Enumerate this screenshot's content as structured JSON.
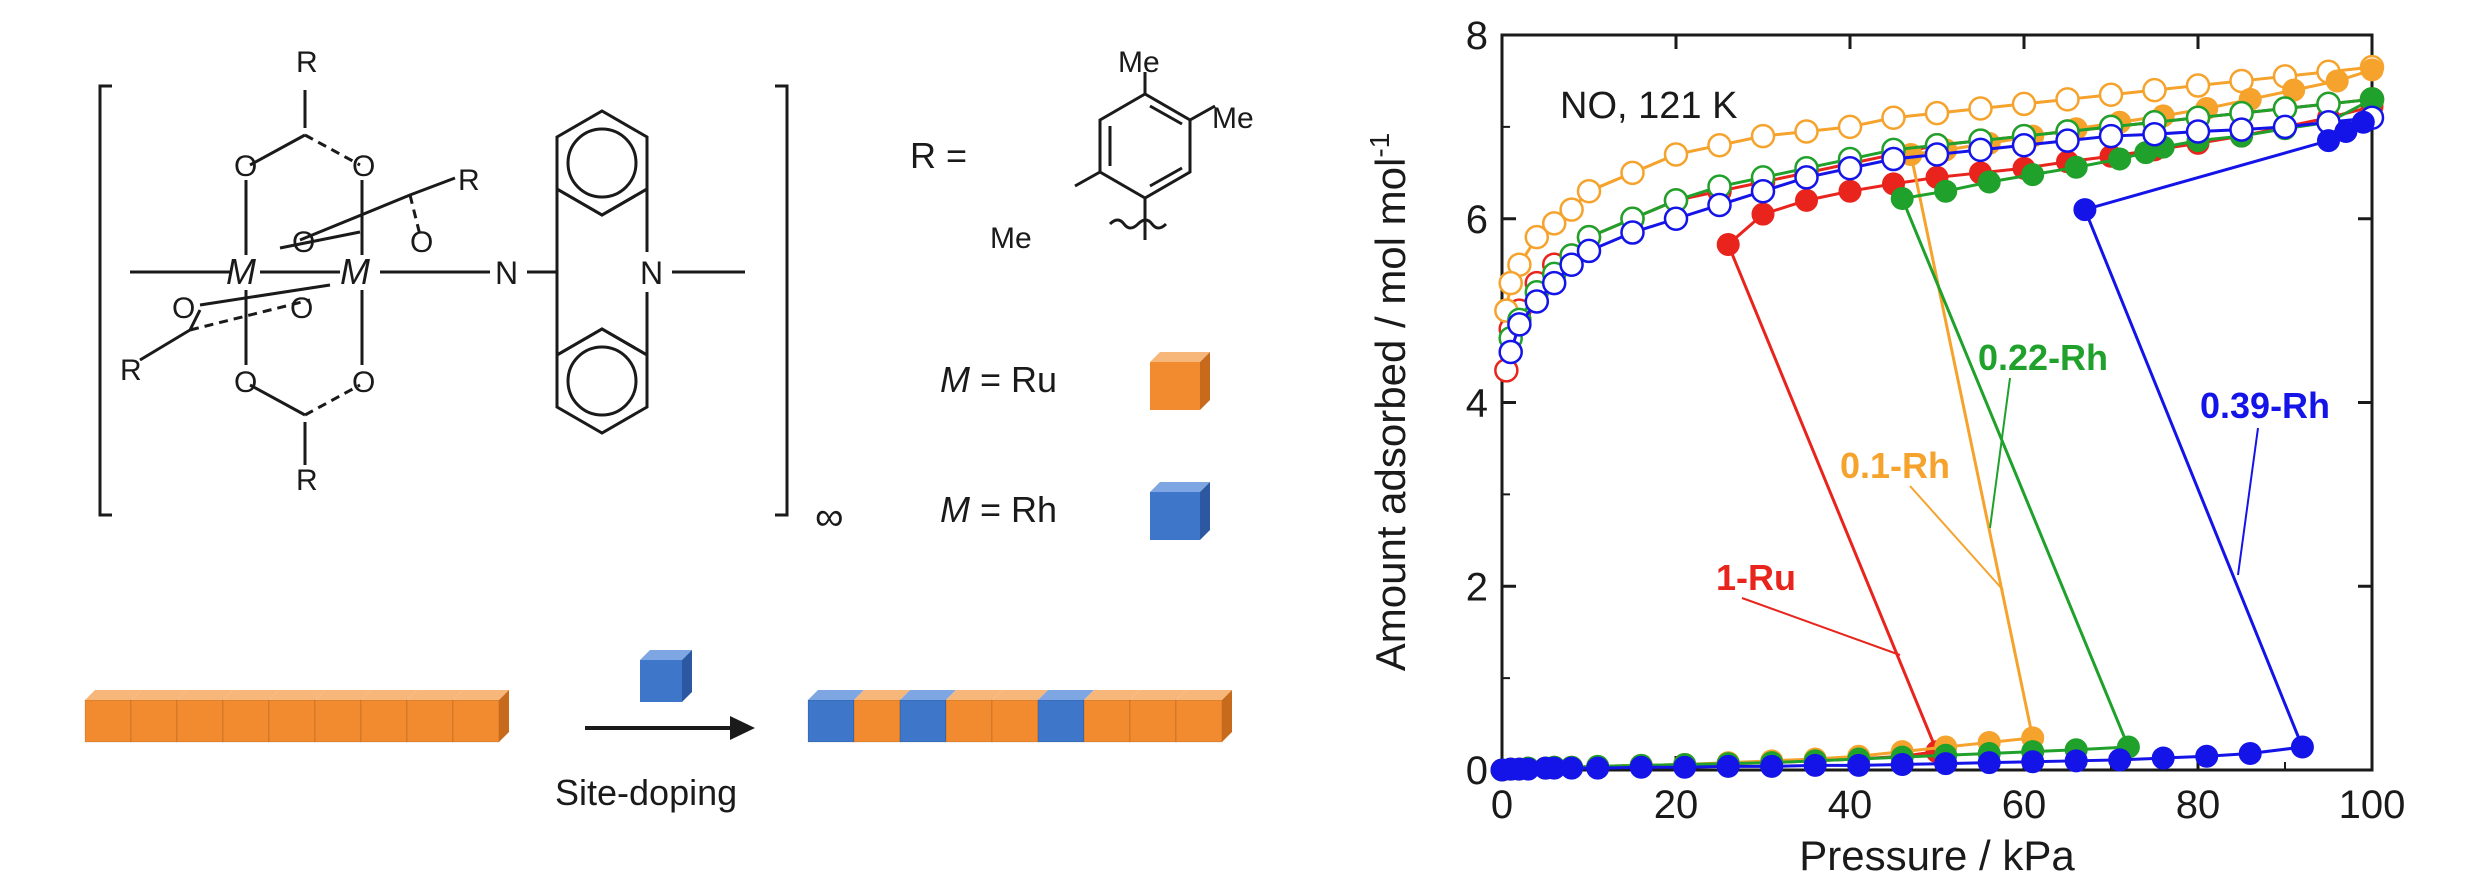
{
  "scheme": {
    "r_definition": "R =",
    "substituent_labels": [
      "Me",
      "Me",
      "Me"
    ],
    "metal_ru": {
      "symbol": "M",
      "rest": "= Ru",
      "color": "#F28A30"
    },
    "metal_rh": {
      "symbol": "M",
      "rest": "= Rh",
      "color": "#3E76C9"
    },
    "infinity": "∞",
    "arrow_label": "Site-doping",
    "chain_before": [
      "Ru",
      "Ru",
      "Ru",
      "Ru",
      "Ru",
      "Ru",
      "Ru",
      "Ru",
      "Ru"
    ],
    "chain_after": [
      "Rh",
      "Ru",
      "Rh",
      "Ru",
      "Ru",
      "Rh",
      "Ru",
      "Ru",
      "Ru"
    ],
    "structure_labels": {
      "R": "R",
      "O": "O",
      "M": "M",
      "N": "N"
    }
  },
  "chart_data": {
    "type": "scatter",
    "annotation": "NO, 121 K",
    "xlabel": "Pressure / kPa",
    "ylabel": "Amount adsorbed / mol mol",
    "ylabel_sup": "-1",
    "xlim": [
      0,
      100
    ],
    "ylim": [
      0,
      8
    ],
    "xticks": [
      0,
      20,
      40,
      60,
      80,
      100
    ],
    "yticks": [
      0,
      2,
      4,
      6,
      8
    ],
    "legend": "direct labels on curves",
    "series": [
      {
        "name": "1-Ru",
        "color": "#E8241C",
        "adsorption_x": [
          0,
          1,
          2,
          3,
          5,
          6,
          8,
          11,
          16,
          21,
          26,
          31,
          36,
          41,
          46,
          50,
          26,
          30,
          35,
          40,
          45,
          50,
          55,
          60,
          65,
          70,
          75,
          80,
          85,
          90,
          95,
          100
        ],
        "adsorption_y": [
          0,
          0.01,
          0.01,
          0.02,
          0.02,
          0.03,
          0.03,
          0.04,
          0.05,
          0.06,
          0.07,
          0.08,
          0.1,
          0.12,
          0.15,
          0.2,
          5.72,
          6.05,
          6.2,
          6.3,
          6.38,
          6.45,
          6.5,
          6.55,
          6.62,
          6.68,
          6.75,
          6.82,
          6.9,
          7.0,
          7.1,
          7.22
        ],
        "desorption_x": [
          100,
          95,
          90,
          85,
          80,
          75,
          70,
          65,
          60,
          55,
          50,
          45,
          40,
          35,
          30,
          25,
          20,
          15,
          10,
          8,
          6,
          4,
          2,
          1,
          0.5
        ],
        "desorption_y": [
          7.3,
          7.25,
          7.2,
          7.15,
          7.1,
          7.05,
          7.0,
          6.95,
          6.9,
          6.85,
          6.8,
          6.7,
          6.6,
          6.5,
          6.4,
          6.3,
          6.2,
          6.0,
          5.8,
          5.6,
          5.5,
          5.3,
          5.0,
          4.8,
          4.35
        ]
      },
      {
        "name": "0.1-Rh",
        "color": "#F5A32C",
        "adsorption_x": [
          0,
          1,
          2,
          3,
          5,
          6,
          8,
          11,
          16,
          21,
          26,
          31,
          36,
          41,
          46,
          51,
          56,
          61,
          47,
          51,
          56,
          61,
          66,
          71,
          76,
          81,
          86,
          91,
          96,
          100
        ],
        "adsorption_y": [
          0,
          0.01,
          0.01,
          0.02,
          0.02,
          0.03,
          0.03,
          0.04,
          0.05,
          0.06,
          0.08,
          0.1,
          0.12,
          0.15,
          0.2,
          0.25,
          0.3,
          0.35,
          6.7,
          6.75,
          6.82,
          6.9,
          6.98,
          7.05,
          7.12,
          7.2,
          7.3,
          7.4,
          7.5,
          7.62
        ],
        "desorption_x": [
          100,
          95,
          90,
          85,
          80,
          75,
          70,
          65,
          60,
          55,
          50,
          45,
          40,
          35,
          30,
          25,
          20,
          15,
          10,
          8,
          6,
          4,
          2,
          1,
          0.5
        ],
        "desorption_y": [
          7.65,
          7.6,
          7.55,
          7.5,
          7.45,
          7.4,
          7.35,
          7.3,
          7.25,
          7.2,
          7.15,
          7.1,
          7.0,
          6.95,
          6.9,
          6.8,
          6.7,
          6.5,
          6.3,
          6.1,
          5.95,
          5.8,
          5.5,
          5.3,
          5.0
        ]
      },
      {
        "name": "0.22-Rh",
        "color": "#1FA12B",
        "adsorption_x": [
          0,
          1,
          2,
          3,
          5,
          6,
          8,
          11,
          16,
          21,
          26,
          31,
          36,
          41,
          46,
          51,
          56,
          61,
          66,
          72,
          46,
          51,
          56,
          61,
          66,
          71,
          74,
          76,
          80,
          85,
          90,
          95,
          100
        ],
        "adsorption_y": [
          0,
          0.01,
          0.01,
          0.02,
          0.02,
          0.03,
          0.03,
          0.04,
          0.05,
          0.06,
          0.07,
          0.08,
          0.1,
          0.12,
          0.14,
          0.16,
          0.18,
          0.2,
          0.22,
          0.25,
          6.22,
          6.3,
          6.4,
          6.48,
          6.56,
          6.65,
          6.72,
          6.78,
          6.85,
          6.9,
          6.98,
          7.05,
          7.3
        ],
        "desorption_x": [
          100,
          95,
          90,
          85,
          80,
          75,
          70,
          65,
          60,
          55,
          50,
          45,
          40,
          35,
          30,
          25,
          20,
          15,
          10,
          8,
          6,
          4,
          2,
          1
        ],
        "desorption_y": [
          7.3,
          7.25,
          7.2,
          7.15,
          7.1,
          7.05,
          7.0,
          6.95,
          6.9,
          6.85,
          6.8,
          6.75,
          6.65,
          6.55,
          6.45,
          6.35,
          6.2,
          6.0,
          5.8,
          5.6,
          5.4,
          5.2,
          4.9,
          4.7
        ]
      },
      {
        "name": "0.39-Rh",
        "color": "#1414E8",
        "adsorption_x": [
          0,
          1,
          2,
          3,
          5,
          6,
          8,
          11,
          16,
          21,
          26,
          31,
          36,
          41,
          46,
          51,
          56,
          61,
          66,
          71,
          76,
          81,
          86,
          92,
          67,
          95,
          97,
          99
        ],
        "adsorption_y": [
          0,
          0.01,
          0.01,
          0.01,
          0.02,
          0.02,
          0.02,
          0.02,
          0.03,
          0.03,
          0.04,
          0.04,
          0.05,
          0.05,
          0.06,
          0.07,
          0.08,
          0.09,
          0.1,
          0.11,
          0.13,
          0.15,
          0.18,
          0.25,
          6.1,
          6.85,
          6.95,
          7.05
        ],
        "desorption_x": [
          100,
          95,
          90,
          85,
          80,
          75,
          70,
          65,
          60,
          55,
          50,
          45,
          40,
          35,
          30,
          25,
          20,
          15,
          10,
          8,
          6,
          4,
          2,
          1
        ],
        "desorption_y": [
          7.1,
          7.05,
          7.0,
          6.97,
          6.95,
          6.92,
          6.9,
          6.85,
          6.8,
          6.75,
          6.7,
          6.65,
          6.55,
          6.45,
          6.3,
          6.15,
          6.0,
          5.85,
          5.65,
          5.5,
          5.3,
          5.1,
          4.85,
          4.55
        ]
      }
    ]
  }
}
